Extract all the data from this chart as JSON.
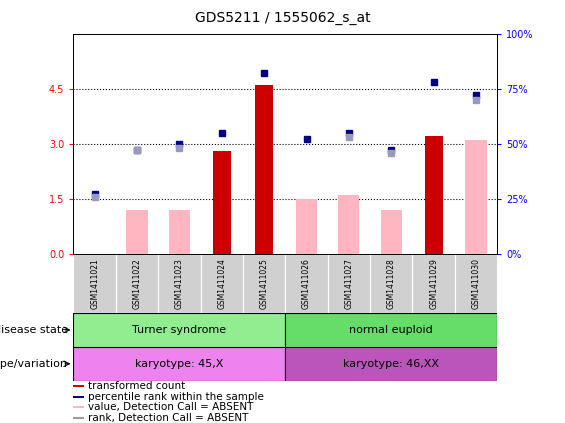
{
  "title": "GDS5211 / 1555062_s_at",
  "samples": [
    "GSM1411021",
    "GSM1411022",
    "GSM1411023",
    "GSM1411024",
    "GSM1411025",
    "GSM1411026",
    "GSM1411027",
    "GSM1411028",
    "GSM1411029",
    "GSM1411030"
  ],
  "red_bars": [
    0.0,
    0.0,
    0.0,
    2.8,
    4.6,
    0.0,
    0.0,
    0.0,
    3.2,
    0.0
  ],
  "pink_bars": [
    0.0,
    1.2,
    1.2,
    0.0,
    0.0,
    1.5,
    1.6,
    1.2,
    0.0,
    3.1
  ],
  "blue_dots": [
    27,
    47,
    50,
    55,
    82,
    52,
    55,
    47,
    78,
    72
  ],
  "light_blue_dots": [
    26,
    47,
    48,
    null,
    null,
    null,
    53,
    46,
    null,
    70
  ],
  "ylim_left": [
    0,
    6
  ],
  "ylim_right": [
    0,
    100
  ],
  "yticks_left": [
    0,
    1.5,
    3.0,
    4.5
  ],
  "yticks_right": [
    0,
    25,
    50,
    75,
    100
  ],
  "hlines": [
    1.5,
    3.0,
    4.5
  ],
  "ds_labels": [
    "Turner syndrome",
    "normal euploid"
  ],
  "ds_colors": [
    "#90EE90",
    "#66DD66"
  ],
  "gv_labels": [
    "karyotype: 45,X",
    "karyotype: 46,XX"
  ],
  "gv_colors": [
    "#EE82EE",
    "#BB55BB"
  ],
  "ds_row_label": "disease state",
  "gv_row_label": "genotype/variation",
  "bar_red": "#CC0000",
  "bar_pink": "#FFB6C1",
  "dot_blue": "#00008B",
  "dot_lblue": "#9999BB",
  "legend_items": [
    {
      "color": "#CC0000",
      "label": "transformed count"
    },
    {
      "color": "#00008B",
      "label": "percentile rank within the sample"
    },
    {
      "color": "#FFB6C1",
      "label": "value, Detection Call = ABSENT"
    },
    {
      "color": "#9999BB",
      "label": "rank, Detection Call = ABSENT"
    }
  ],
  "title_fontsize": 10,
  "tick_fontsize": 7,
  "annot_fontsize": 8,
  "legend_fontsize": 7.5,
  "sample_fontsize": 5.5
}
